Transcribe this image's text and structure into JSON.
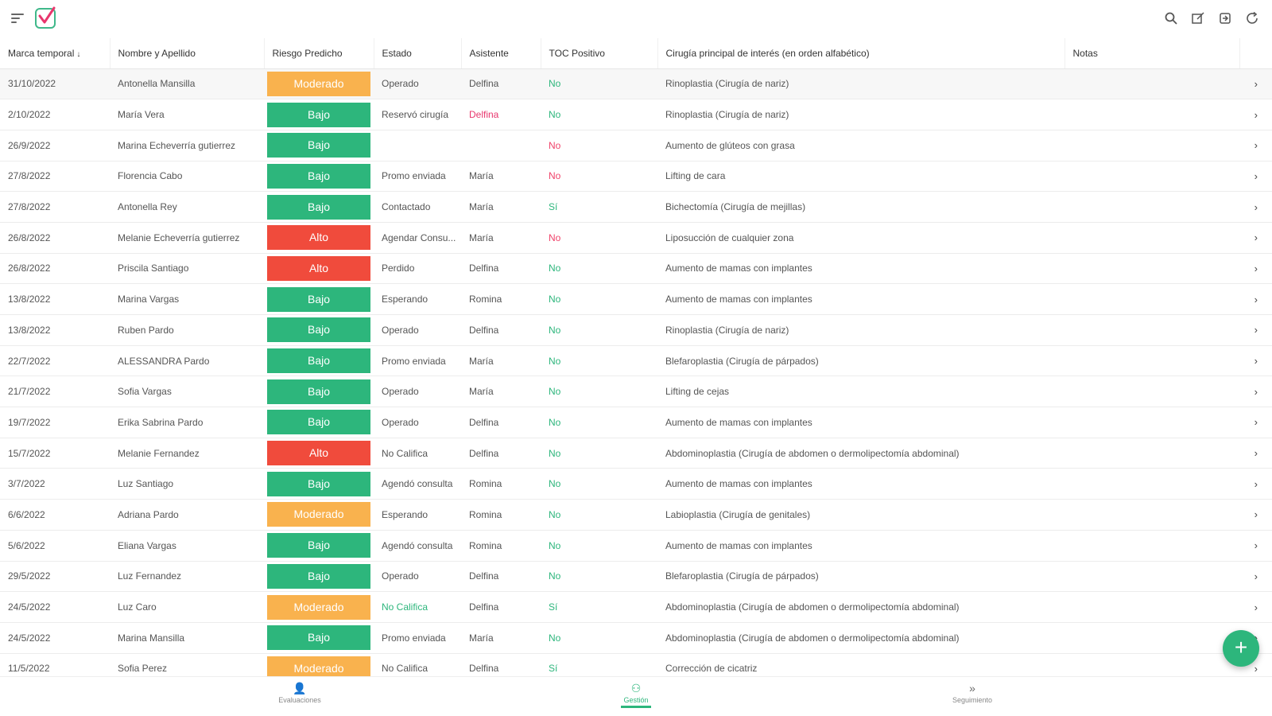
{
  "columns": [
    "Marca temporal",
    "Nombre y Apellido",
    "Riesgo Predicho",
    "Estado",
    "Asistente",
    "TOC Positivo",
    "Cirugía principal de interés (en orden alfabético)",
    "Notas"
  ],
  "rows": [
    {
      "fecha": "31/10/2022",
      "nombre": "Antonella Mansilla",
      "riesgo": "Moderado",
      "estado": "Operado",
      "asistente": "Delfina",
      "toc": "No",
      "cirugia": "Rinoplastia (Cirugía de nariz)"
    },
    {
      "fecha": "2/10/2022",
      "nombre": "María Vera",
      "riesgo": "Bajo",
      "estado": "Reservó cirugía",
      "asistente": "Delfina",
      "toc": "No",
      "cirugia": "Rinoplastia (Cirugía de nariz)"
    },
    {
      "fecha": "26/9/2022",
      "nombre": "Marina Echeverría gutierrez",
      "riesgo": "Bajo",
      "estado": "",
      "asistente": "",
      "toc": "No",
      "cirugia": "Aumento de glúteos con grasa"
    },
    {
      "fecha": "27/8/2022",
      "nombre": "Florencia Cabo",
      "riesgo": "Bajo",
      "estado": "Promo enviada",
      "asistente": "María",
      "toc": "No",
      "cirugia": "Lifting de cara"
    },
    {
      "fecha": "27/8/2022",
      "nombre": "Antonella Rey",
      "riesgo": "Bajo",
      "estado": "Contactado",
      "asistente": "María",
      "toc": "Sí",
      "cirugia": "Bichectomía (Cirugía de mejillas)"
    },
    {
      "fecha": "26/8/2022",
      "nombre": "Melanie Echeverría gutierrez",
      "riesgo": "Alto",
      "estado": "Agendar Consu...",
      "asistente": "María",
      "toc": "No",
      "cirugia": "Liposucción de cualquier zona"
    },
    {
      "fecha": "26/8/2022",
      "nombre": "Priscila Santiago",
      "riesgo": "Alto",
      "estado": "Perdido",
      "asistente": "Delfina",
      "toc": "No",
      "cirugia": "Aumento de mamas con implantes"
    },
    {
      "fecha": "13/8/2022",
      "nombre": "Marina Vargas",
      "riesgo": "Bajo",
      "estado": "Esperando",
      "asistente": "Romina",
      "toc": "No",
      "cirugia": "Aumento de mamas con implantes"
    },
    {
      "fecha": "13/8/2022",
      "nombre": "Ruben Pardo",
      "riesgo": "Bajo",
      "estado": "Operado",
      "asistente": "Delfina",
      "toc": "No",
      "cirugia": "Rinoplastia (Cirugía de nariz)"
    },
    {
      "fecha": "22/7/2022",
      "nombre": "ALESSANDRA Pardo",
      "riesgo": "Bajo",
      "estado": "Promo enviada",
      "asistente": "María",
      "toc": "No",
      "cirugia": "Blefaroplastia (Cirugía de párpados)"
    },
    {
      "fecha": "21/7/2022",
      "nombre": "Sofia Vargas",
      "riesgo": "Bajo",
      "estado": "Operado",
      "asistente": "María",
      "toc": "No",
      "cirugia": "Lifting de cejas"
    },
    {
      "fecha": "19/7/2022",
      "nombre": "Erika Sabrina Pardo",
      "riesgo": "Bajo",
      "estado": "Operado",
      "asistente": "Delfina",
      "toc": "No",
      "cirugia": "Aumento de mamas con implantes"
    },
    {
      "fecha": "15/7/2022",
      "nombre": "Melanie Fernandez",
      "riesgo": "Alto",
      "estado": "No Califica",
      "asistente": "Delfina",
      "toc": "No",
      "cirugia": "Abdominoplastia (Cirugía de abdomen o dermolipectomía abdominal)"
    },
    {
      "fecha": "3/7/2022",
      "nombre": "Luz Santiago",
      "riesgo": "Bajo",
      "estado": "Agendó consulta",
      "asistente": "Romina",
      "toc": "No",
      "cirugia": "Aumento de mamas con implantes"
    },
    {
      "fecha": "6/6/2022",
      "nombre": "Adriana Pardo",
      "riesgo": "Moderado",
      "estado": "Esperando",
      "asistente": "Romina",
      "toc": "No",
      "cirugia": "Labioplastia (Cirugía de genitales)"
    },
    {
      "fecha": "5/6/2022",
      "nombre": "Eliana Vargas",
      "riesgo": "Bajo",
      "estado": "Agendó consulta",
      "asistente": "Romina",
      "toc": "No",
      "cirugia": "Aumento de mamas con implantes"
    },
    {
      "fecha": "29/5/2022",
      "nombre": "Luz Fernandez",
      "riesgo": "Bajo",
      "estado": "Operado",
      "asistente": "Delfina",
      "toc": "No",
      "cirugia": "Blefaroplastia (Cirugía de párpados)"
    },
    {
      "fecha": "24/5/2022",
      "nombre": "Luz Caro",
      "riesgo": "Moderado",
      "estado": "No Califica",
      "asistente": "Delfina",
      "toc": "Sí",
      "cirugia": "Abdominoplastia (Cirugía de abdomen o dermolipectomía abdominal)"
    },
    {
      "fecha": "24/5/2022",
      "nombre": "Marina Mansilla",
      "riesgo": "Bajo",
      "estado": "Promo enviada",
      "asistente": "María",
      "toc": "No",
      "cirugia": "Abdominoplastia (Cirugía de abdomen o dermolipectomía abdominal)"
    },
    {
      "fecha": "11/5/2022",
      "nombre": "Sofia Perez",
      "riesgo": "Moderado",
      "estado": "No Califica",
      "asistente": "Delfina",
      "toc": "Sí",
      "cirugia": "Corrección de cicatriz"
    }
  ],
  "nav": {
    "evaluaciones": "Evaluaciones",
    "gestion": "Gestión",
    "seguimiento": "Seguimiento"
  },
  "colors": {
    "bajo": "#2db67c",
    "alto": "#f04b3c",
    "moderado": "#f9b24e",
    "accent": "#2db67c",
    "pink": "#e8366d"
  }
}
